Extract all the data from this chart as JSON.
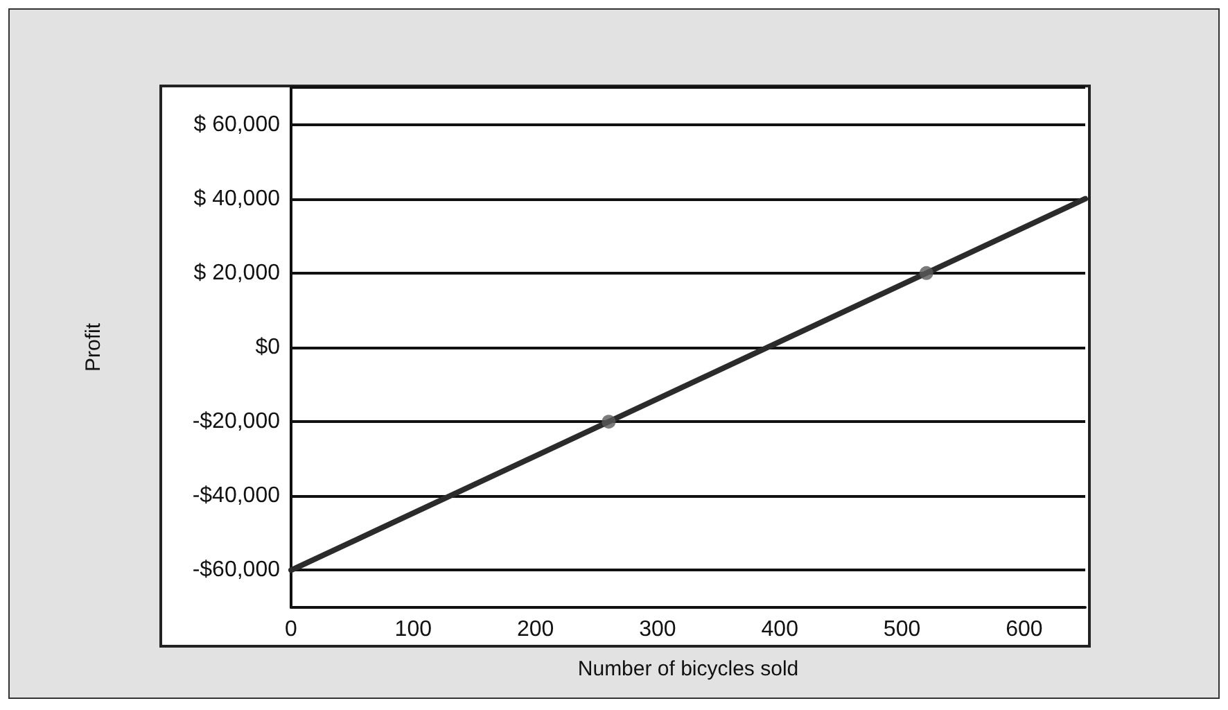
{
  "chart_data": {
    "type": "line",
    "xlabel": "Number of bicycles sold",
    "ylabel": "Profit",
    "xlim": [
      0,
      650
    ],
    "xticks": [
      0,
      100,
      200,
      300,
      400,
      500,
      600
    ],
    "ylim": [
      -70000,
      70000
    ],
    "yticks": [
      {
        "value": -70000,
        "label": null
      },
      {
        "value": -60000,
        "label": "-$60,000"
      },
      {
        "value": -40000,
        "label": "-$40,000"
      },
      {
        "value": -20000,
        "label": "-$20,000"
      },
      {
        "value": 0,
        "label": "$0"
      },
      {
        "value": 20000,
        "label": "$ 20,000"
      },
      {
        "value": 40000,
        "label": "$ 40,000"
      },
      {
        "value": 60000,
        "label": "$ 60,000"
      },
      {
        "value": 70000,
        "label": null
      }
    ],
    "grid": "y",
    "series": [
      {
        "color": "#2b2b2b",
        "marker": "none",
        "line_style": "solid",
        "x": [
          0,
          650
        ],
        "values": [
          -60000,
          40000
        ]
      },
      {
        "type": "scatter",
        "color": "#5a5a5a",
        "marker": "circle",
        "x": [
          260,
          520
        ],
        "values": [
          -20000,
          20000
        ]
      }
    ]
  }
}
